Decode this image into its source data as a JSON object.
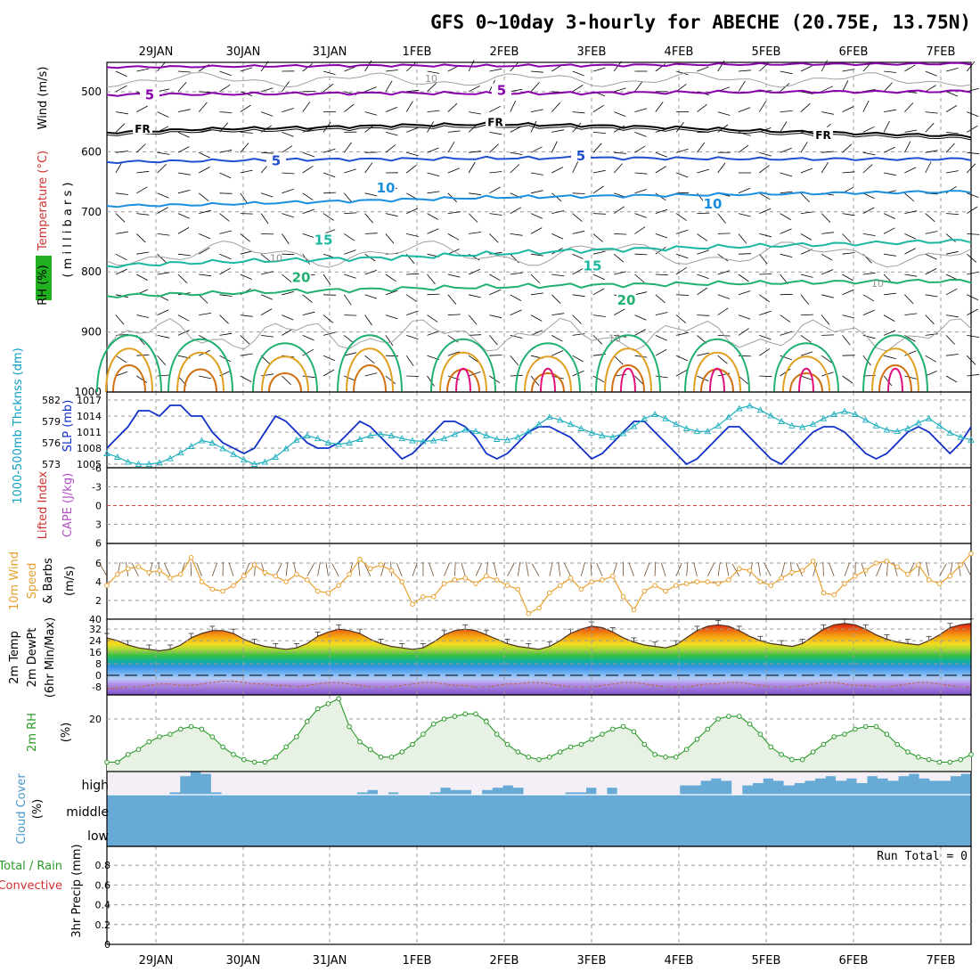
{
  "title": "GFS 0~10day 3-hourly for ABECHE (20.75E, 13.75N)",
  "date_labels": [
    "29JAN",
    "30JAN",
    "31JAN",
    "1FEB",
    "2FEB",
    "3FEB",
    "4FEB",
    "5FEB",
    "6FEB",
    "7FEB"
  ],
  "colors": {
    "grid": "#9a9a9a",
    "frame": "#000000",
    "purple": "#8800aa",
    "blue": "#1f4fd0",
    "lightblue": "#1a8fe0",
    "teal": "#1ab8a0",
    "green": "#20b070",
    "orange": "#e0a020",
    "magenta": "#e0107a",
    "slp": "#1030c8",
    "thick": "#20b0c0",
    "wind10": "#e8a030",
    "rh": "#2a9a2a",
    "cloud": "#68aad6",
    "cloudbg": "#f4eef6"
  },
  "chart_data": [
    {
      "type": "heatmap",
      "name": "pressure-cross-section",
      "ylabel_parts": [
        "RH (%)",
        "Temperature (°C)",
        "Wind (m/s)"
      ],
      "ylabel_unit": "( m i l l i b a r s )",
      "y_ticks": [
        "500",
        "600",
        "700",
        "800",
        "900",
        "1000"
      ],
      "ylim": [
        1000,
        450
      ],
      "isotherm_labels": [
        {
          "text": "5",
          "level": 508
        },
        {
          "text": "5",
          "level": 501
        },
        {
          "text": "FR",
          "level": 564
        },
        {
          "text": "FR",
          "level": 553
        },
        {
          "text": "FR",
          "level": 574
        },
        {
          "text": "5",
          "level": 618
        },
        {
          "text": "5",
          "level": 610
        },
        {
          "text": "10",
          "level": 663
        },
        {
          "text": "10",
          "level": 690
        },
        {
          "text": "15",
          "level": 750
        },
        {
          "text": "15",
          "level": 793
        },
        {
          "text": "20",
          "level": 812
        },
        {
          "text": "20",
          "level": 850
        }
      ],
      "rh_labels": [
        {
          "text": "10",
          "level": 478
        },
        {
          "text": "10",
          "level": 777
        },
        {
          "text": "10",
          "level": 819
        },
        {
          "text": "10",
          "level": 910
        }
      ],
      "isotherm_levels": {
        "5_upper": [
          505,
          504,
          503,
          502,
          503,
          502,
          501,
          500,
          500,
          499
        ],
        "FR": [
          568,
          562,
          560,
          556,
          554,
          556,
          560,
          566,
          570,
          574
        ],
        "5_mid": [
          617,
          615,
          613,
          612,
          611,
          610,
          611,
          612,
          612,
          612
        ],
        "10": [
          690,
          688,
          684,
          680,
          676,
          674,
          672,
          670,
          668,
          666
        ],
        "15": [
          790,
          784,
          780,
          776,
          770,
          764,
          760,
          756,
          752,
          748
        ],
        "20": [
          840,
          836,
          832,
          828,
          825,
          822,
          820,
          818,
          816,
          815
        ]
      }
    },
    {
      "type": "line",
      "name": "thickness-slp",
      "ylabel_left": "1000-500mb Thcknss (dm)",
      "ylabel_right": "SLP (mb)",
      "left_ticks": [
        "582",
        "579",
        "576",
        "573"
      ],
      "right_ticks": [
        "1017",
        "1014",
        "1011",
        "1008",
        "1005"
      ],
      "series": [
        {
          "name": "SLP (mb)",
          "values": [
            1008,
            1010,
            1012,
            1015,
            1015,
            1014,
            1016,
            1016,
            1014,
            1014,
            1011,
            1009,
            1008,
            1007,
            1008,
            1011,
            1014,
            1013,
            1011,
            1009,
            1008,
            1008,
            1009,
            1011,
            1013,
            1012,
            1010,
            1008,
            1006,
            1007,
            1009,
            1011,
            1013,
            1013,
            1012,
            1010,
            1007,
            1006,
            1007,
            1009,
            1011,
            1012,
            1012,
            1011,
            1010,
            1008,
            1006,
            1007,
            1009,
            1011,
            1013,
            1013,
            1011,
            1009,
            1007,
            1005,
            1006,
            1008,
            1010,
            1012,
            1012,
            1010,
            1008,
            1006,
            1005,
            1007,
            1009,
            1011,
            1012,
            1012,
            1011,
            1009,
            1007,
            1006,
            1007,
            1009,
            1011,
            1012,
            1011,
            1009,
            1007,
            1009,
            1012
          ]
        },
        {
          "name": "1000-500mb Thcknss (dm)",
          "values": [
            574.5,
            574.0,
            573.3,
            573.0,
            573.0,
            573.2,
            573.8,
            574.6,
            575.5,
            576.3,
            576.0,
            575.2,
            574.4,
            573.6,
            573.0,
            573.3,
            574.0,
            575.2,
            576.4,
            577.0,
            576.6,
            576.0,
            575.8,
            576.0,
            576.5,
            577.0,
            577.2,
            577.0,
            576.6,
            576.3,
            576.2,
            576.3,
            576.6,
            577.2,
            577.8,
            577.6,
            577.0,
            576.5,
            576.4,
            576.8,
            577.6,
            578.6,
            579.6,
            579.2,
            578.6,
            578.0,
            577.4,
            577.0,
            576.8,
            577.3,
            578.3,
            579.4,
            580.0,
            579.4,
            578.6,
            578.0,
            577.6,
            577.6,
            578.4,
            579.6,
            580.8,
            581.2,
            580.6,
            579.8,
            579.0,
            578.4,
            578.2,
            578.6,
            579.4,
            580.0,
            580.4,
            580.0,
            579.2,
            578.4,
            577.8,
            577.6,
            578.0,
            578.8,
            579.4,
            578.4,
            577.4,
            576.8,
            576.4
          ]
        }
      ]
    },
    {
      "type": "line",
      "name": "lifted-index-cape",
      "ylabel_left": "Lifted Index",
      "ylabel_right": "CAPE (J/kg)",
      "y_ticks": [
        "-6",
        "-3",
        "0",
        "3",
        "6"
      ],
      "ylim": [
        -6,
        6
      ],
      "series": [
        {
          "name": "Lifted Index",
          "values": []
        }
      ]
    },
    {
      "type": "line",
      "name": "10m-wind",
      "ylabel_parts": [
        "10m Wind",
        "Speed",
        "& Barbs",
        "(m/s)"
      ],
      "y_ticks": [
        "6",
        "4",
        "2",
        "40"
      ],
      "ylim": [
        0,
        8
      ],
      "series": [
        {
          "name": "10m Wind Speed (m/s)",
          "values": [
            3.6,
            4.8,
            5.4,
            5.6,
            5.0,
            5.2,
            4.4,
            4.8,
            6.6,
            4.0,
            3.2,
            3.0,
            3.6,
            4.6,
            5.8,
            5.0,
            4.6,
            4.0,
            4.8,
            4.2,
            3.0,
            2.8,
            3.6,
            4.8,
            6.4,
            5.4,
            5.8,
            5.2,
            4.0,
            1.6,
            2.4,
            2.4,
            3.8,
            4.2,
            4.4,
            3.8,
            4.6,
            4.2,
            3.6,
            3.2,
            0.6,
            1.2,
            2.8,
            3.6,
            4.4,
            3.2,
            4.0,
            4.2,
            4.6,
            2.4,
            1.0,
            3.0,
            3.6,
            3.0,
            3.6,
            3.8,
            4.0,
            4.0,
            3.8,
            4.2,
            5.4,
            5.2,
            4.0,
            3.6,
            4.4,
            5.0,
            5.2,
            6.2,
            2.8,
            2.6,
            3.8,
            4.6,
            5.2,
            6.0,
            6.2,
            5.6,
            4.8,
            5.8,
            4.2,
            3.8,
            4.6,
            5.8,
            7.0
          ]
        }
      ]
    },
    {
      "type": "area",
      "name": "2m-temp",
      "ylabel_parts": [
        "2m Temp",
        "2m DewPt",
        "(6hr Min/Max)"
      ],
      "y_ticks": [
        "32",
        "24",
        "16",
        "8",
        "0",
        "-8"
      ],
      "ylim": [
        -14,
        40
      ],
      "series": [
        {
          "name": "2m Temp (°C)",
          "values": [
            26,
            24,
            21,
            19,
            18,
            17,
            18,
            21,
            26,
            29,
            31,
            31,
            29,
            25,
            22,
            20,
            19,
            18,
            19,
            22,
            27,
            30,
            32,
            31,
            29,
            25,
            22,
            20,
            19,
            18,
            19,
            23,
            28,
            31,
            32,
            31,
            28,
            25,
            22,
            20,
            19,
            18,
            20,
            24,
            29,
            32,
            34,
            33,
            30,
            26,
            23,
            21,
            20,
            19,
            21,
            26,
            31,
            34,
            35,
            34,
            31,
            27,
            24,
            22,
            21,
            20,
            22,
            27,
            32,
            35,
            36,
            35,
            32,
            28,
            25,
            23,
            22,
            21,
            24,
            28,
            33,
            35,
            36
          ]
        },
        {
          "name": "2m DewPt (°C)",
          "values": [
            -9,
            -9,
            -8,
            -8,
            -7,
            -6,
            -6,
            -7,
            -7,
            -6,
            -5,
            -4,
            -4,
            -5,
            -6,
            -6,
            -7,
            -7,
            -8,
            -7,
            -6,
            -5,
            -5,
            -6,
            -7,
            -8,
            -8,
            -8,
            -7,
            -6,
            -5,
            -5,
            -6,
            -7,
            -7,
            -8,
            -8,
            -7,
            -6,
            -6,
            -5,
            -5,
            -6,
            -7,
            -8,
            -8,
            -8,
            -7,
            -6,
            -5,
            -5,
            -6,
            -7,
            -8,
            -8,
            -8,
            -7,
            -6,
            -6,
            -5,
            -5,
            -6,
            -7,
            -8,
            -8,
            -8,
            -7,
            -6,
            -5,
            -5,
            -6,
            -7,
            -7,
            -8,
            -8,
            -7,
            -6,
            -5,
            -5,
            -6,
            -7,
            -8,
            -8
          ]
        }
      ]
    },
    {
      "type": "area",
      "name": "2m-rh",
      "ylabel_parts": [
        "2m RH",
        "(%)"
      ],
      "y_ticks": [
        "20"
      ],
      "ylim": [
        0,
        30
      ],
      "series": [
        {
          "name": "2m RH (%)",
          "values": [
            3,
            3,
            6,
            8,
            11,
            13,
            14,
            16,
            17,
            16,
            13,
            9,
            6,
            4,
            3,
            3,
            5,
            9,
            13,
            19,
            24,
            26,
            28,
            17,
            11,
            8,
            5,
            5,
            7,
            10,
            14,
            18,
            20,
            21,
            22,
            22,
            19,
            14,
            10,
            7,
            5,
            4,
            5,
            7,
            9,
            10,
            12,
            14,
            16,
            17,
            15,
            10,
            6,
            5,
            5,
            8,
            12,
            16,
            20,
            21,
            21,
            18,
            14,
            9,
            6,
            4,
            4,
            7,
            10,
            13,
            14,
            16,
            17,
            17,
            14,
            10,
            7,
            5,
            4,
            3,
            3,
            4,
            6
          ]
        }
      ]
    },
    {
      "type": "bar",
      "name": "cloud-cover",
      "ylabel_parts": [
        "Cloud Cover",
        "(%)"
      ],
      "levels": [
        "high",
        "middle",
        "low"
      ],
      "series": [
        {
          "name": "high cloud (%)",
          "values": [
            0,
            0,
            0,
            0,
            0,
            0,
            10,
            80,
            100,
            90,
            10,
            0,
            0,
            0,
            0,
            0,
            0,
            0,
            0,
            0,
            0,
            0,
            0,
            0,
            10,
            20,
            0,
            10,
            0,
            0,
            0,
            10,
            30,
            20,
            20,
            0,
            20,
            30,
            40,
            30,
            0,
            0,
            0,
            0,
            10,
            10,
            30,
            0,
            30,
            0,
            0,
            0,
            0,
            0,
            0,
            40,
            40,
            60,
            70,
            60,
            0,
            40,
            50,
            70,
            60,
            40,
            50,
            60,
            70,
            80,
            60,
            70,
            50,
            80,
            70,
            60,
            80,
            90,
            70,
            60,
            60,
            80,
            90
          ]
        }
      ]
    },
    {
      "type": "bar",
      "name": "precip",
      "ylabel_parts": [
        "3hr Precip (mm)"
      ],
      "legend": [
        "Total / Rain",
        "Convective"
      ],
      "run_total": "Run Total = 0",
      "y_ticks": [
        "0.8",
        "0.6",
        "0.4",
        "0.2",
        "0"
      ],
      "ylim": [
        0,
        1
      ],
      "series": [
        {
          "name": "Total / Rain",
          "values": []
        }
      ]
    }
  ]
}
